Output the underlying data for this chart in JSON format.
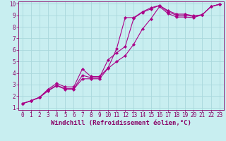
{
  "title": "",
  "xlabel": "Windchill (Refroidissement éolien,°C)",
  "ylabel": "",
  "xlim": [
    -0.5,
    23.5
  ],
  "ylim": [
    0.8,
    10.2
  ],
  "xticks": [
    0,
    1,
    2,
    3,
    4,
    5,
    6,
    7,
    8,
    9,
    10,
    11,
    12,
    13,
    14,
    15,
    16,
    17,
    18,
    19,
    20,
    21,
    22,
    23
  ],
  "yticks": [
    1,
    2,
    3,
    4,
    5,
    6,
    7,
    8,
    9,
    10
  ],
  "bg_color": "#c8eef0",
  "grid_color": "#aad8dc",
  "line_color": "#aa0088",
  "line1_x": [
    0,
    1,
    2,
    3,
    4,
    5,
    6,
    7,
    8,
    9,
    10,
    11,
    12,
    13,
    14,
    15,
    16,
    17,
    18,
    19,
    20,
    21,
    22,
    23
  ],
  "line1_y": [
    1.35,
    1.6,
    1.9,
    2.6,
    3.1,
    2.8,
    2.8,
    4.35,
    3.7,
    3.7,
    4.45,
    6.1,
    8.8,
    8.8,
    9.3,
    9.65,
    9.85,
    9.4,
    9.1,
    9.1,
    8.95,
    9.05,
    9.75,
    9.95
  ],
  "line2_x": [
    0,
    1,
    2,
    3,
    4,
    5,
    6,
    7,
    8,
    9,
    10,
    11,
    12,
    13,
    14,
    15,
    16,
    17,
    18,
    19,
    20,
    21,
    22,
    23
  ],
  "line2_y": [
    1.35,
    1.6,
    1.9,
    2.5,
    2.95,
    2.65,
    2.65,
    3.8,
    3.6,
    3.6,
    5.15,
    5.75,
    6.3,
    8.75,
    9.25,
    9.55,
    9.85,
    9.3,
    9.0,
    9.0,
    8.9,
    9.05,
    9.75,
    9.95
  ],
  "line3_x": [
    0,
    1,
    2,
    3,
    4,
    5,
    6,
    7,
    8,
    9,
    10,
    11,
    12,
    13,
    14,
    15,
    16,
    17,
    18,
    19,
    20,
    21,
    22,
    23
  ],
  "line3_y": [
    1.35,
    1.58,
    1.88,
    2.45,
    2.9,
    2.6,
    2.6,
    3.5,
    3.5,
    3.5,
    4.4,
    5.0,
    5.5,
    6.5,
    7.8,
    8.7,
    9.75,
    9.15,
    8.85,
    8.85,
    8.8,
    9.05,
    9.75,
    9.95
  ],
  "font_color": "#880066",
  "tick_fontsize": 5.5,
  "label_fontsize": 6.5,
  "linewidth": 0.8,
  "markersize": 2.2
}
